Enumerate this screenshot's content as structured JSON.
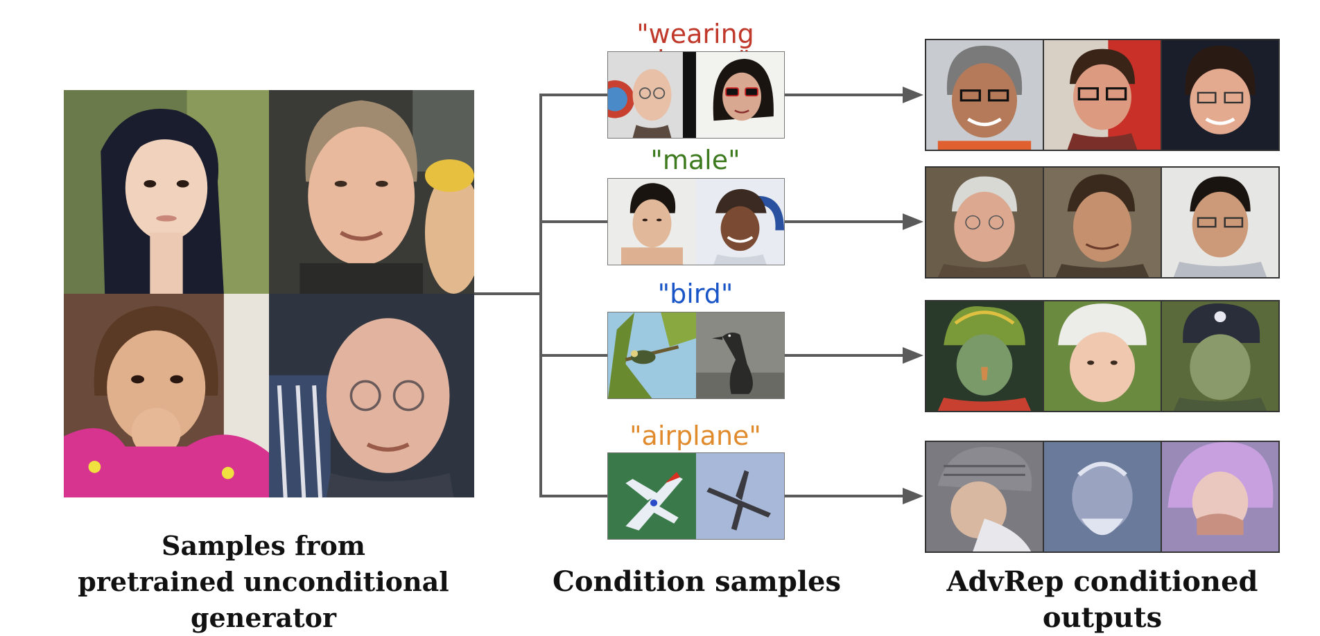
{
  "captions": {
    "left_line1": "Samples from",
    "left_line2": "pretrained unconditional generator",
    "middle": "Condition samples",
    "right": "AdvRep conditioned outputs"
  },
  "conditions": [
    {
      "label": "\"wearing glasses\"",
      "color": "#c0392b"
    },
    {
      "label": "\"male\"",
      "color": "#3d7a1e"
    },
    {
      "label": "\"bird\"",
      "color": "#1a55c8"
    },
    {
      "label": "\"airplane\"",
      "color": "#e08a2c"
    }
  ],
  "colors": {
    "arrow": "#5a5a5a",
    "caption_text": "#111111"
  }
}
